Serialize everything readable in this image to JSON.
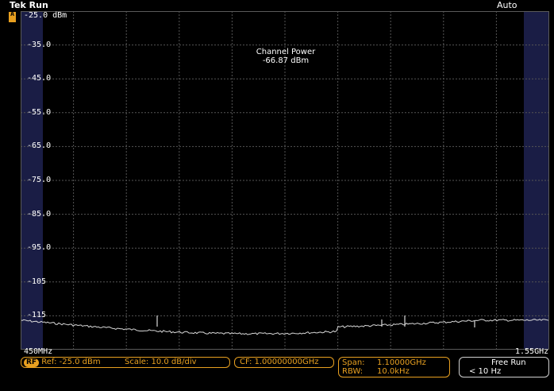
{
  "header": {
    "brand": "Tek",
    "state": "Run",
    "trigger_mode": "Auto",
    "channel_marker": "A"
  },
  "display": {
    "ref_level_label": "-25.0 dBm",
    "y_ticks": [
      "-35.0",
      "-45.0",
      "-55.0",
      "-65.0",
      "-75.0",
      "-85.0",
      "-95.0",
      "-105",
      "-115"
    ],
    "x_start": "450MHz",
    "x_end": "1.55GHz"
  },
  "measurement": {
    "title": "Channel Power",
    "value": "-66.87 dBm"
  },
  "status": {
    "rf_badge": "RF",
    "ref": "Ref: -25.0 dBm",
    "scale": "Scale: 10.0 dB/div",
    "cf": "CF: 1.00000000GHz",
    "span_label": "Span:",
    "span_value": "1.10000GHz",
    "rbw_label": "RBW:",
    "rbw_value": "10.0kHz",
    "trigger": "Free Run",
    "rate": "< 10 Hz"
  },
  "colors": {
    "accent": "#e8a020",
    "grid": "#555555",
    "trace": "#d8d8d8",
    "edge_band": "#1a1d45"
  }
}
